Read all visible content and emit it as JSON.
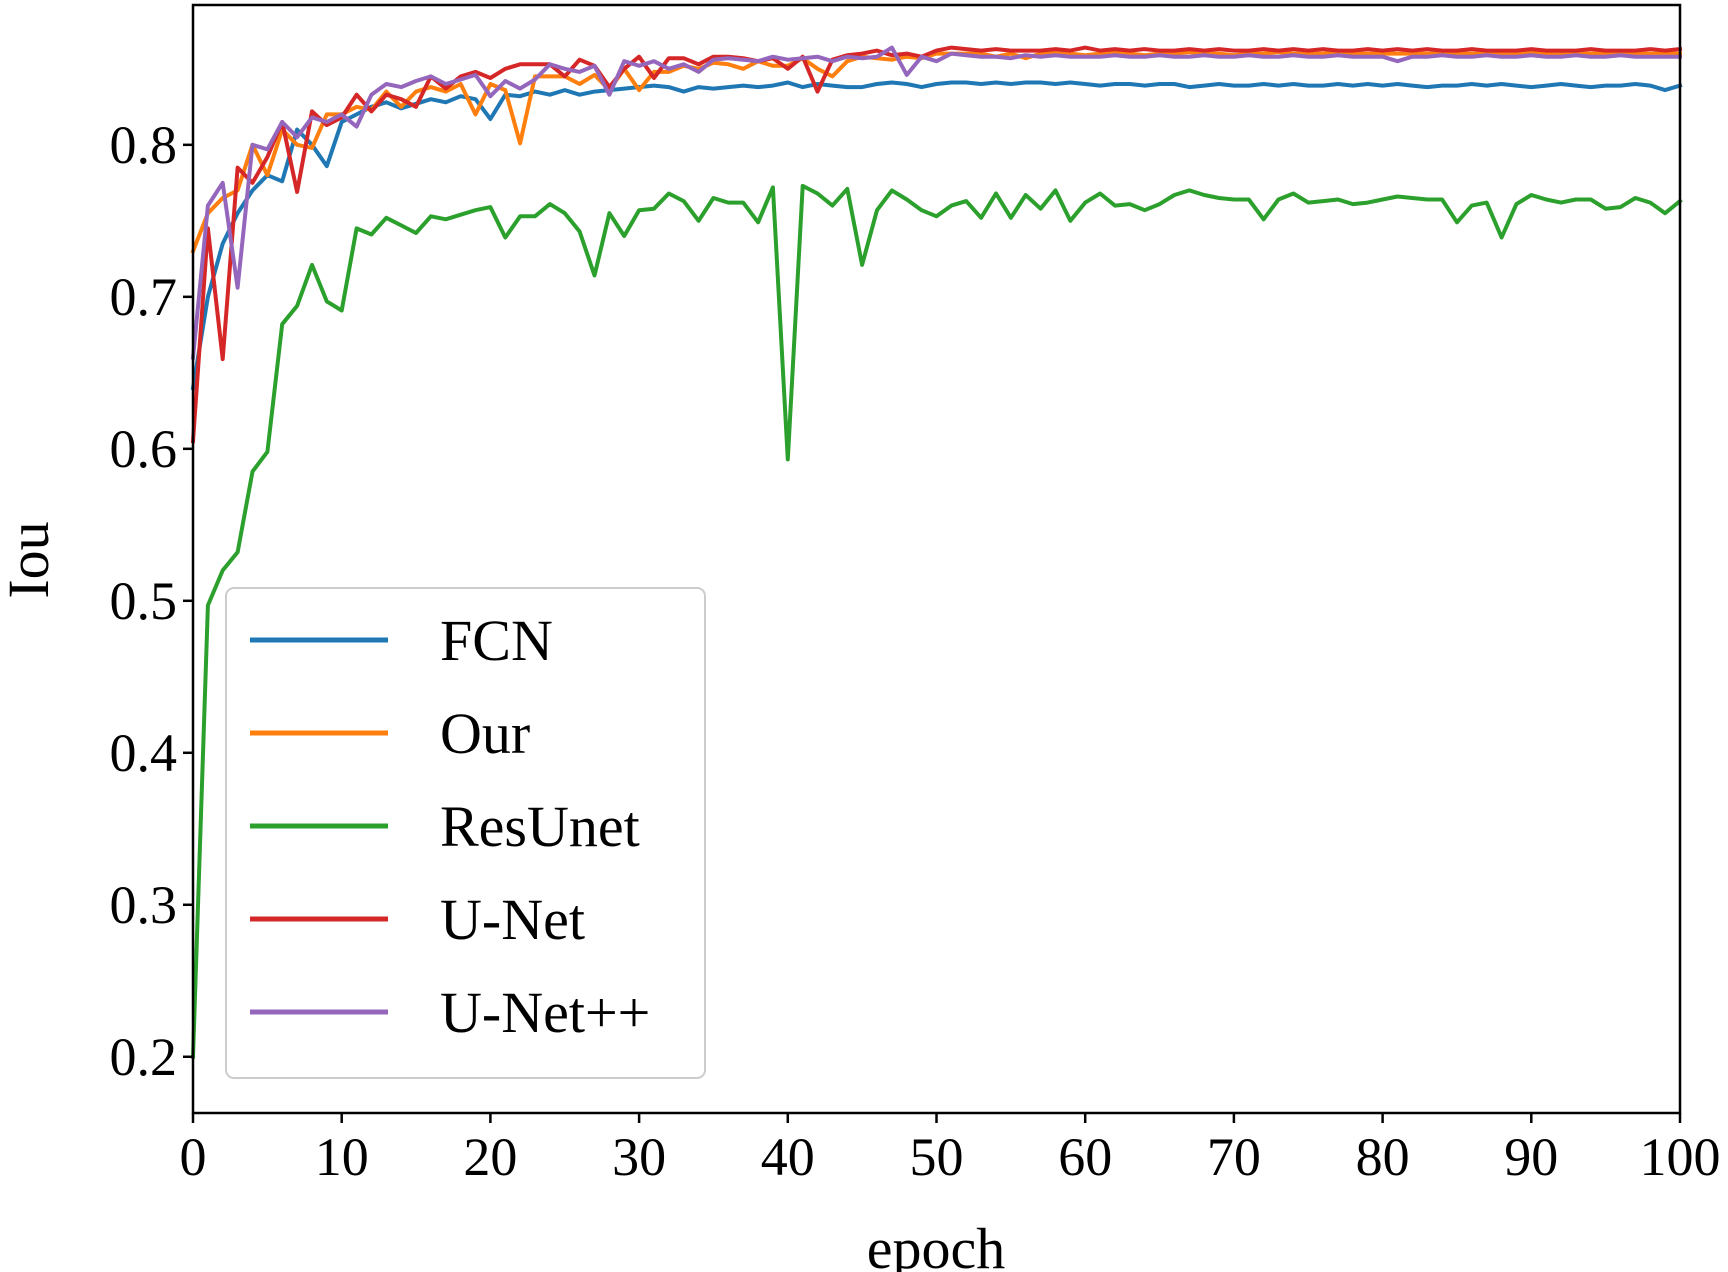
{
  "chart_data": {
    "type": "line",
    "title": "",
    "xlabel": "epoch",
    "ylabel": "Iou",
    "xlim": [
      0,
      100
    ],
    "ylim": [
      0.163,
      0.892
    ],
    "xticks": [
      0,
      10,
      20,
      30,
      40,
      50,
      60,
      70,
      80,
      90,
      100
    ],
    "yticks": [
      0.2,
      0.3,
      0.4,
      0.5,
      0.6,
      0.7,
      0.8
    ],
    "xtick_labels": [
      "0",
      "10",
      "20",
      "30",
      "40",
      "50",
      "60",
      "70",
      "80",
      "90",
      "100"
    ],
    "ytick_labels": [
      "0.2",
      "0.3",
      "0.4",
      "0.5",
      "0.6",
      "0.7",
      "0.8"
    ],
    "grid": false,
    "legend_position": "lower-left",
    "series": [
      {
        "name": "FCN",
        "color": "#1f77b4",
        "x": [
          0,
          1,
          2,
          3,
          4,
          5,
          6,
          7,
          8,
          9,
          10,
          11,
          12,
          13,
          14,
          15,
          16,
          17,
          18,
          19,
          20,
          21,
          22,
          23,
          24,
          25,
          26,
          27,
          28,
          29,
          30,
          31,
          32,
          33,
          34,
          35,
          36,
          37,
          38,
          39,
          40,
          41,
          42,
          43,
          44,
          45,
          46,
          47,
          48,
          49,
          50,
          51,
          52,
          53,
          54,
          55,
          56,
          57,
          58,
          59,
          60,
          61,
          62,
          63,
          64,
          65,
          66,
          67,
          68,
          69,
          70,
          71,
          72,
          73,
          74,
          75,
          76,
          77,
          78,
          79,
          80,
          81,
          82,
          83,
          84,
          85,
          86,
          87,
          88,
          89,
          90,
          91,
          92,
          93,
          94,
          95,
          96,
          97,
          98,
          99,
          100
        ],
        "y": [
          0.64,
          0.7,
          0.735,
          0.755,
          0.77,
          0.78,
          0.776,
          0.81,
          0.8,
          0.786,
          0.815,
          0.82,
          0.825,
          0.828,
          0.824,
          0.827,
          0.83,
          0.828,
          0.832,
          0.83,
          0.817,
          0.833,
          0.832,
          0.835,
          0.833,
          0.836,
          0.833,
          0.835,
          0.836,
          0.837,
          0.838,
          0.839,
          0.838,
          0.835,
          0.838,
          0.837,
          0.838,
          0.839,
          0.838,
          0.839,
          0.841,
          0.838,
          0.84,
          0.839,
          0.838,
          0.838,
          0.84,
          0.841,
          0.84,
          0.838,
          0.84,
          0.841,
          0.841,
          0.84,
          0.841,
          0.84,
          0.841,
          0.841,
          0.84,
          0.841,
          0.84,
          0.839,
          0.84,
          0.84,
          0.839,
          0.84,
          0.84,
          0.838,
          0.839,
          0.84,
          0.839,
          0.839,
          0.84,
          0.839,
          0.84,
          0.839,
          0.839,
          0.84,
          0.839,
          0.84,
          0.839,
          0.84,
          0.839,
          0.838,
          0.839,
          0.839,
          0.84,
          0.839,
          0.84,
          0.839,
          0.838,
          0.839,
          0.84,
          0.839,
          0.838,
          0.839,
          0.839,
          0.84,
          0.839,
          0.836,
          0.839
        ]
      },
      {
        "name": "Our",
        "color": "#ff7f0e",
        "x": [
          0,
          1,
          2,
          3,
          4,
          5,
          6,
          7,
          8,
          9,
          10,
          11,
          12,
          13,
          14,
          15,
          16,
          17,
          18,
          19,
          20,
          21,
          22,
          23,
          24,
          25,
          26,
          27,
          28,
          29,
          30,
          31,
          32,
          33,
          34,
          35,
          36,
          37,
          38,
          39,
          40,
          41,
          42,
          43,
          44,
          45,
          46,
          47,
          48,
          49,
          50,
          51,
          52,
          53,
          54,
          55,
          56,
          57,
          58,
          59,
          60,
          61,
          62,
          63,
          64,
          65,
          66,
          67,
          68,
          69,
          70,
          71,
          72,
          73,
          74,
          75,
          76,
          77,
          78,
          79,
          80,
          81,
          82,
          83,
          84,
          85,
          86,
          87,
          88,
          89,
          90,
          91,
          92,
          93,
          94,
          95,
          96,
          97,
          98,
          99,
          100
        ],
        "y": [
          0.73,
          0.755,
          0.765,
          0.77,
          0.8,
          0.78,
          0.81,
          0.8,
          0.798,
          0.82,
          0.82,
          0.825,
          0.823,
          0.835,
          0.825,
          0.835,
          0.838,
          0.835,
          0.84,
          0.82,
          0.84,
          0.836,
          0.801,
          0.845,
          0.845,
          0.845,
          0.84,
          0.846,
          0.836,
          0.85,
          0.836,
          0.848,
          0.848,
          0.852,
          0.85,
          0.854,
          0.853,
          0.85,
          0.855,
          0.852,
          0.852,
          0.857,
          0.85,
          0.845,
          0.855,
          0.858,
          0.857,
          0.856,
          0.858,
          0.857,
          0.86,
          0.86,
          0.86,
          0.86,
          0.858,
          0.86,
          0.857,
          0.86,
          0.861,
          0.86,
          0.859,
          0.86,
          0.861,
          0.86,
          0.859,
          0.86,
          0.86,
          0.861,
          0.86,
          0.86,
          0.859,
          0.86,
          0.86,
          0.861,
          0.86,
          0.86,
          0.86,
          0.861,
          0.86,
          0.86,
          0.86,
          0.86,
          0.86,
          0.86,
          0.86,
          0.86,
          0.86,
          0.86,
          0.86,
          0.86,
          0.861,
          0.86,
          0.86,
          0.86,
          0.86,
          0.86,
          0.86,
          0.86,
          0.86,
          0.86,
          0.86
        ]
      },
      {
        "name": "ResUnet",
        "color": "#2ca02c",
        "x": [
          0,
          1,
          2,
          3,
          4,
          5,
          6,
          7,
          8,
          9,
          10,
          11,
          12,
          13,
          14,
          15,
          16,
          17,
          18,
          19,
          20,
          21,
          22,
          23,
          24,
          25,
          26,
          27,
          28,
          29,
          30,
          31,
          32,
          33,
          34,
          35,
          36,
          37,
          38,
          39,
          40,
          41,
          42,
          43,
          44,
          45,
          46,
          47,
          48,
          49,
          50,
          51,
          52,
          53,
          54,
          55,
          56,
          57,
          58,
          59,
          60,
          61,
          62,
          63,
          64,
          65,
          66,
          67,
          68,
          69,
          70,
          71,
          72,
          73,
          74,
          75,
          76,
          77,
          78,
          79,
          80,
          81,
          82,
          83,
          84,
          85,
          86,
          87,
          88,
          89,
          90,
          91,
          92,
          93,
          94,
          95,
          96,
          97,
          98,
          99,
          100
        ],
        "y": [
          0.2,
          0.497,
          0.52,
          0.532,
          0.585,
          0.598,
          0.682,
          0.694,
          0.721,
          0.697,
          0.691,
          0.745,
          0.741,
          0.752,
          0.747,
          0.742,
          0.753,
          0.751,
          0.754,
          0.757,
          0.759,
          0.739,
          0.753,
          0.753,
          0.761,
          0.755,
          0.743,
          0.714,
          0.755,
          0.74,
          0.757,
          0.758,
          0.768,
          0.763,
          0.75,
          0.765,
          0.762,
          0.762,
          0.749,
          0.772,
          0.593,
          0.773,
          0.768,
          0.76,
          0.771,
          0.721,
          0.757,
          0.77,
          0.764,
          0.757,
          0.753,
          0.76,
          0.763,
          0.752,
          0.768,
          0.752,
          0.767,
          0.758,
          0.77,
          0.75,
          0.762,
          0.768,
          0.76,
          0.761,
          0.757,
          0.761,
          0.767,
          0.77,
          0.767,
          0.765,
          0.764,
          0.764,
          0.751,
          0.764,
          0.768,
          0.762,
          0.763,
          0.764,
          0.761,
          0.762,
          0.764,
          0.766,
          0.765,
          0.764,
          0.764,
          0.749,
          0.76,
          0.762,
          0.739,
          0.761,
          0.767,
          0.764,
          0.762,
          0.764,
          0.764,
          0.758,
          0.759,
          0.765,
          0.762,
          0.755,
          0.763
        ]
      },
      {
        "name": "U-Net",
        "color": "#d62728",
        "x": [
          0,
          1,
          2,
          3,
          4,
          5,
          6,
          7,
          8,
          9,
          10,
          11,
          12,
          13,
          14,
          15,
          16,
          17,
          18,
          19,
          20,
          21,
          22,
          23,
          24,
          25,
          26,
          27,
          28,
          29,
          30,
          31,
          32,
          33,
          34,
          35,
          36,
          37,
          38,
          39,
          40,
          41,
          42,
          43,
          44,
          45,
          46,
          47,
          48,
          49,
          50,
          51,
          52,
          53,
          54,
          55,
          56,
          57,
          58,
          59,
          60,
          61,
          62,
          63,
          64,
          65,
          66,
          67,
          68,
          69,
          70,
          71,
          72,
          73,
          74,
          75,
          76,
          77,
          78,
          79,
          80,
          81,
          82,
          83,
          84,
          85,
          86,
          87,
          88,
          89,
          90,
          91,
          92,
          93,
          94,
          95,
          96,
          97,
          98,
          99,
          100
        ],
        "y": [
          0.605,
          0.745,
          0.659,
          0.785,
          0.775,
          0.792,
          0.815,
          0.769,
          0.822,
          0.813,
          0.818,
          0.833,
          0.822,
          0.833,
          0.83,
          0.825,
          0.845,
          0.837,
          0.845,
          0.848,
          0.844,
          0.85,
          0.853,
          0.853,
          0.853,
          0.845,
          0.856,
          0.852,
          0.838,
          0.85,
          0.858,
          0.844,
          0.857,
          0.857,
          0.853,
          0.858,
          0.858,
          0.857,
          0.855,
          0.857,
          0.85,
          0.858,
          0.835,
          0.856,
          0.859,
          0.86,
          0.862,
          0.859,
          0.86,
          0.858,
          0.862,
          0.864,
          0.863,
          0.862,
          0.863,
          0.862,
          0.862,
          0.862,
          0.863,
          0.862,
          0.864,
          0.862,
          0.863,
          0.862,
          0.863,
          0.862,
          0.862,
          0.863,
          0.862,
          0.863,
          0.862,
          0.862,
          0.863,
          0.862,
          0.863,
          0.862,
          0.863,
          0.862,
          0.862,
          0.863,
          0.862,
          0.863,
          0.862,
          0.863,
          0.862,
          0.862,
          0.863,
          0.862,
          0.862,
          0.862,
          0.863,
          0.862,
          0.862,
          0.862,
          0.863,
          0.862,
          0.862,
          0.862,
          0.863,
          0.862,
          0.863
        ]
      },
      {
        "name": "U-Net++",
        "color": "#9467bd",
        "x": [
          0,
          1,
          2,
          3,
          4,
          5,
          6,
          7,
          8,
          9,
          10,
          11,
          12,
          13,
          14,
          15,
          16,
          17,
          18,
          19,
          20,
          21,
          22,
          23,
          24,
          25,
          26,
          27,
          28,
          29,
          30,
          31,
          32,
          33,
          34,
          35,
          36,
          37,
          38,
          39,
          40,
          41,
          42,
          43,
          44,
          45,
          46,
          47,
          48,
          49,
          50,
          51,
          52,
          53,
          54,
          55,
          56,
          57,
          58,
          59,
          60,
          61,
          62,
          63,
          64,
          65,
          66,
          67,
          68,
          69,
          70,
          71,
          72,
          73,
          74,
          75,
          76,
          77,
          78,
          79,
          80,
          81,
          82,
          83,
          84,
          85,
          86,
          87,
          88,
          89,
          90,
          91,
          92,
          93,
          94,
          95,
          96,
          97,
          98,
          99,
          100
        ],
        "y": [
          0.66,
          0.76,
          0.775,
          0.706,
          0.8,
          0.797,
          0.815,
          0.805,
          0.818,
          0.815,
          0.82,
          0.812,
          0.833,
          0.84,
          0.838,
          0.842,
          0.845,
          0.84,
          0.843,
          0.846,
          0.832,
          0.842,
          0.837,
          0.843,
          0.853,
          0.85,
          0.848,
          0.852,
          0.833,
          0.855,
          0.852,
          0.855,
          0.85,
          0.853,
          0.848,
          0.856,
          0.857,
          0.856,
          0.855,
          0.858,
          0.856,
          0.857,
          0.858,
          0.855,
          0.858,
          0.857,
          0.858,
          0.864,
          0.846,
          0.858,
          0.855,
          0.86,
          0.859,
          0.858,
          0.858,
          0.857,
          0.859,
          0.858,
          0.859,
          0.858,
          0.858,
          0.858,
          0.859,
          0.858,
          0.858,
          0.859,
          0.858,
          0.858,
          0.859,
          0.858,
          0.858,
          0.859,
          0.858,
          0.858,
          0.859,
          0.858,
          0.858,
          0.859,
          0.858,
          0.858,
          0.858,
          0.855,
          0.858,
          0.858,
          0.859,
          0.858,
          0.858,
          0.859,
          0.858,
          0.858,
          0.859,
          0.858,
          0.858,
          0.859,
          0.858,
          0.858,
          0.859,
          0.858,
          0.858,
          0.858,
          0.858
        ]
      }
    ]
  }
}
